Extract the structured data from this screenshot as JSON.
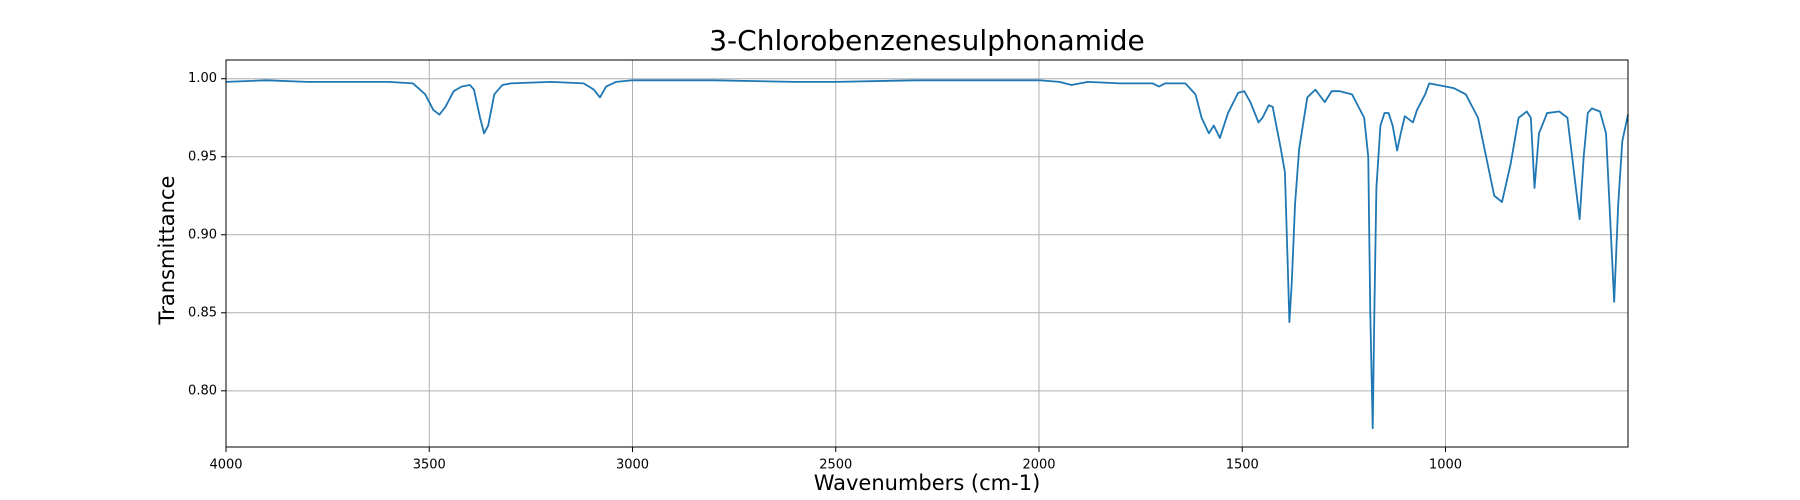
{
  "chart_data": {
    "type": "line",
    "title": "3-Chlorobenzenesulphonamide",
    "x_label": "Wavenumbers (cm-1)",
    "y_label": "Transmittance",
    "color": "#1f77b4",
    "grid": true,
    "xlim": [
      4000,
      551
    ],
    "ylim": [
      0.764,
      1.012
    ],
    "xticks": [
      4000,
      3500,
      3000,
      2500,
      2000,
      1500,
      1000
    ],
    "yticks": [
      {
        "value": 0.8,
        "label": "0.80"
      },
      {
        "value": 0.85,
        "label": "0.85"
      },
      {
        "value": 0.9,
        "label": "0.90"
      },
      {
        "value": 0.95,
        "label": "0.95"
      },
      {
        "value": 1.0,
        "label": "1.00"
      }
    ],
    "x": [
      4000,
      3900,
      3800,
      3700,
      3600,
      3540,
      3510,
      3490,
      3475,
      3460,
      3440,
      3420,
      3400,
      3390,
      3375,
      3365,
      3355,
      3340,
      3320,
      3300,
      3200,
      3120,
      3095,
      3080,
      3065,
      3040,
      3000,
      2800,
      2600,
      2500,
      2300,
      2100,
      2000,
      1950,
      1920,
      1880,
      1800,
      1720,
      1705,
      1690,
      1640,
      1615,
      1600,
      1582,
      1570,
      1555,
      1535,
      1510,
      1495,
      1480,
      1460,
      1450,
      1435,
      1425,
      1420,
      1405,
      1395,
      1388,
      1384,
      1378,
      1370,
      1360,
      1340,
      1320,
      1297,
      1280,
      1260,
      1230,
      1200,
      1190,
      1185,
      1179,
      1175,
      1170,
      1160,
      1150,
      1140,
      1130,
      1119,
      1110,
      1100,
      1090,
      1080,
      1070,
      1050,
      1040,
      1000,
      980,
      950,
      920,
      900,
      880,
      861,
      840,
      820,
      800,
      790,
      781,
      770,
      750,
      720,
      700,
      670,
      660,
      650,
      640,
      620,
      605,
      585,
      575,
      565,
      551
    ],
    "values": [
      0.998,
      0.999,
      0.998,
      0.998,
      0.998,
      0.997,
      0.99,
      0.98,
      0.977,
      0.982,
      0.992,
      0.995,
      0.996,
      0.993,
      0.975,
      0.965,
      0.97,
      0.99,
      0.996,
      0.997,
      0.998,
      0.997,
      0.993,
      0.988,
      0.995,
      0.998,
      0.999,
      0.999,
      0.998,
      0.998,
      0.999,
      0.999,
      0.999,
      0.998,
      0.996,
      0.998,
      0.997,
      0.997,
      0.995,
      0.997,
      0.997,
      0.99,
      0.975,
      0.965,
      0.97,
      0.962,
      0.978,
      0.991,
      0.992,
      0.985,
      0.972,
      0.975,
      0.983,
      0.982,
      0.975,
      0.955,
      0.94,
      0.88,
      0.844,
      0.87,
      0.92,
      0.955,
      0.988,
      0.993,
      0.985,
      0.992,
      0.992,
      0.99,
      0.975,
      0.95,
      0.85,
      0.776,
      0.85,
      0.93,
      0.97,
      0.978,
      0.978,
      0.97,
      0.954,
      0.965,
      0.976,
      0.974,
      0.972,
      0.98,
      0.99,
      0.997,
      0.995,
      0.994,
      0.99,
      0.975,
      0.95,
      0.925,
      0.921,
      0.945,
      0.975,
      0.979,
      0.975,
      0.93,
      0.965,
      0.978,
      0.979,
      0.975,
      0.91,
      0.95,
      0.978,
      0.981,
      0.979,
      0.965,
      0.857,
      0.92,
      0.96,
      0.977
    ]
  }
}
